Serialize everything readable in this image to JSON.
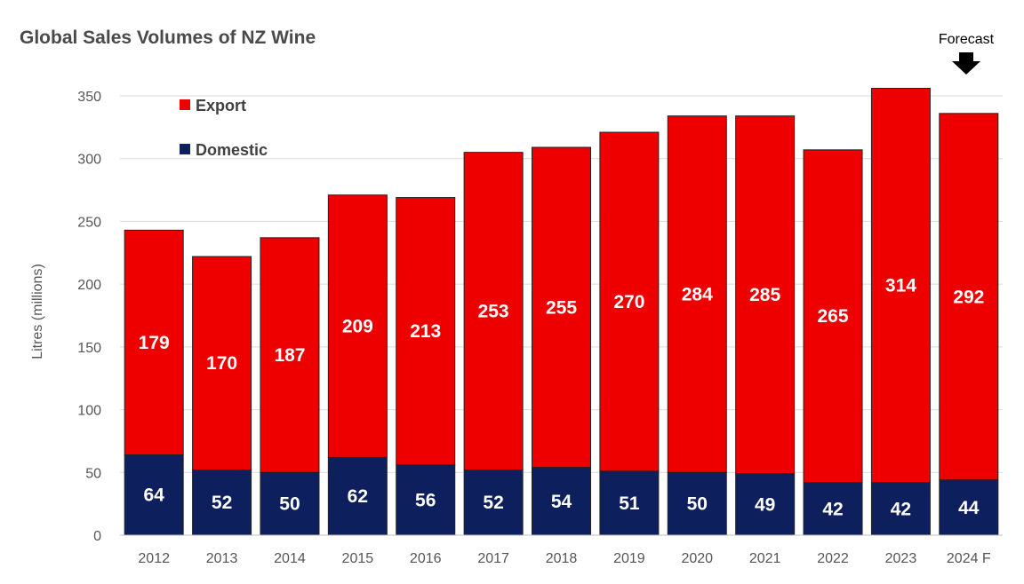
{
  "colors": {
    "export": "#ee0000",
    "domestic": "#0d1f5c",
    "bar_outline": "#222222"
  },
  "chart_data": {
    "type": "bar",
    "stacked": true,
    "title": "Global Sales Volumes of NZ Wine",
    "xlabel": "",
    "ylabel": "Litres (millions)",
    "ylim": [
      0,
      350
    ],
    "yticks": [
      0,
      50,
      100,
      150,
      200,
      250,
      300,
      350
    ],
    "grid": true,
    "legend_position": "top-left",
    "categories": [
      "2012",
      "2013",
      "2014",
      "2015",
      "2016",
      "2017",
      "2018",
      "2019",
      "2020",
      "2021",
      "2022",
      "2023",
      "2024 F"
    ],
    "series": [
      {
        "name": "Domestic",
        "values": [
          64,
          52,
          50,
          62,
          56,
          52,
          54,
          51,
          50,
          49,
          42,
          42,
          44
        ]
      },
      {
        "name": "Export",
        "values": [
          179,
          170,
          187,
          209,
          213,
          253,
          255,
          270,
          284,
          285,
          265,
          314,
          292
        ]
      }
    ],
    "annotation": {
      "text": "Forecast",
      "target": "2024 F",
      "icon": "down-arrow-icon"
    }
  }
}
